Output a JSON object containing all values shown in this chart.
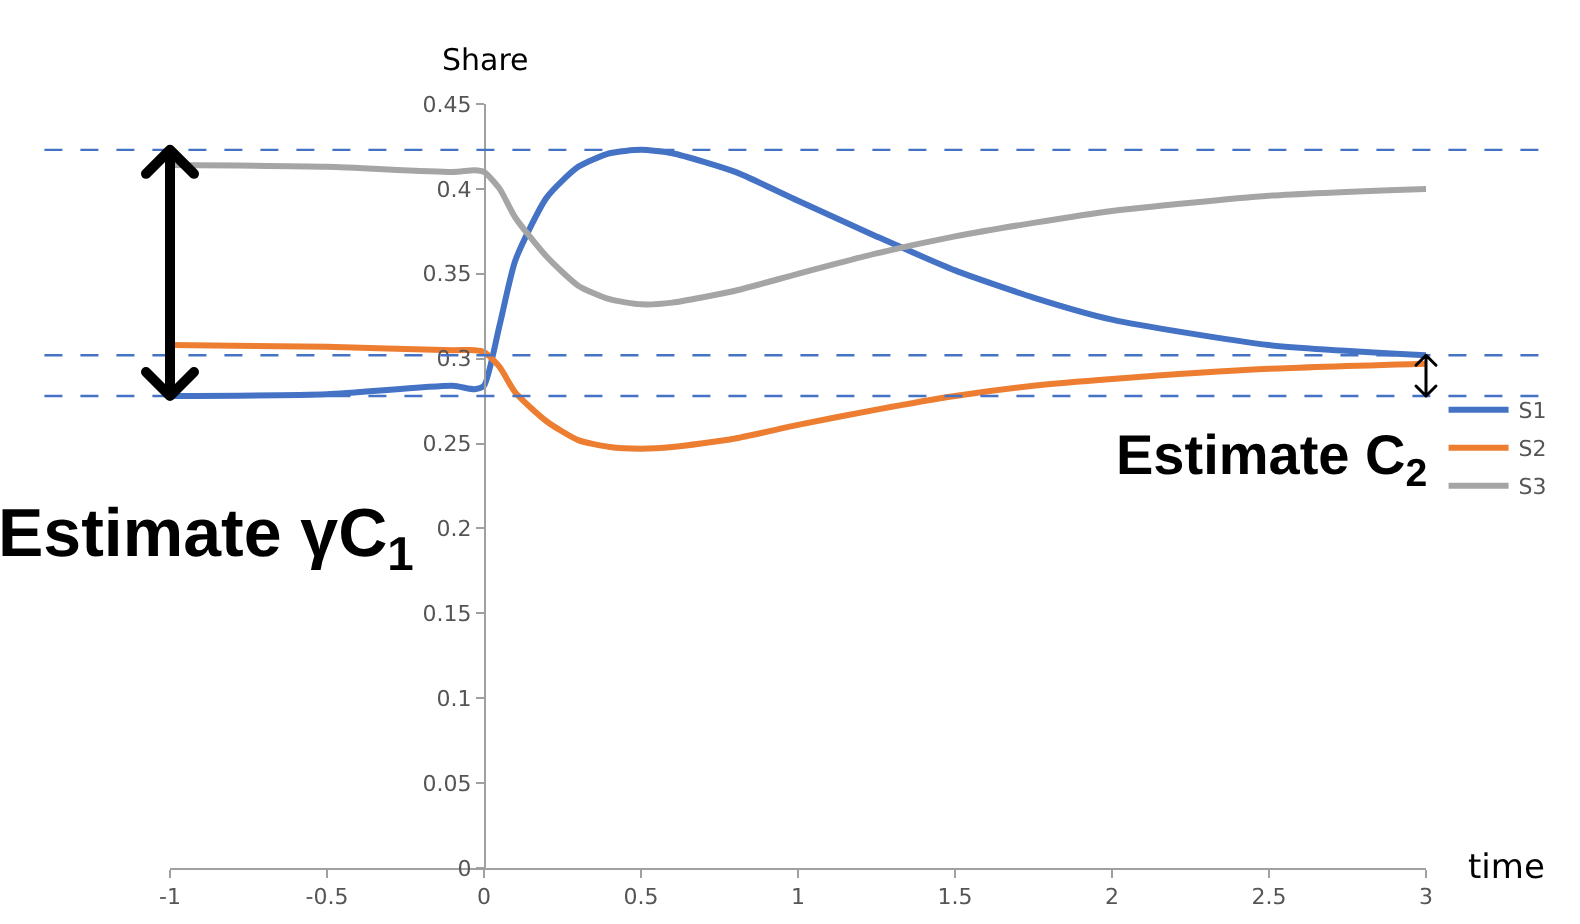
{
  "chart_data": {
    "type": "line",
    "xlabel": "time",
    "ylabel": "Share",
    "x": [
      -1,
      -0.5,
      -0.1,
      -0.03,
      0,
      0.05,
      0.1,
      0.2,
      0.3,
      0.4,
      0.5,
      0.6,
      0.8,
      1.0,
      1.25,
      1.5,
      1.75,
      2.0,
      2.5,
      3.0
    ],
    "series": [
      {
        "name": "S1",
        "color": "#4472c4",
        "values": [
          0.278,
          0.279,
          0.284,
          0.282,
          0.284,
          0.32,
          0.358,
          0.395,
          0.413,
          0.421,
          0.423,
          0.421,
          0.41,
          0.393,
          0.372,
          0.352,
          0.336,
          0.323,
          0.308,
          0.302
        ]
      },
      {
        "name": "S2",
        "color": "#ed7d31",
        "values": [
          0.308,
          0.307,
          0.305,
          0.305,
          0.304,
          0.295,
          0.28,
          0.263,
          0.252,
          0.248,
          0.247,
          0.248,
          0.253,
          0.261,
          0.27,
          0.278,
          0.284,
          0.288,
          0.294,
          0.297
        ]
      },
      {
        "name": "S3",
        "color": "#a5a5a5",
        "values": [
          0.414,
          0.413,
          0.41,
          0.411,
          0.41,
          0.4,
          0.383,
          0.36,
          0.343,
          0.335,
          0.332,
          0.333,
          0.34,
          0.35,
          0.362,
          0.372,
          0.38,
          0.387,
          0.396,
          0.4
        ]
      }
    ],
    "xlim": [
      -1,
      3
    ],
    "xticks": [
      -1,
      -0.5,
      0,
      0.5,
      1,
      1.5,
      2,
      2.5,
      3
    ],
    "ylim": [
      0,
      0.45
    ],
    "yticks": [
      0,
      0.05,
      0.1,
      0.15,
      0.2,
      0.25,
      0.3,
      0.35,
      0.4,
      0.45
    ],
    "ref_lines": [
      {
        "axis": "y",
        "value": 0.423,
        "color": "#4472c4",
        "line_style": "dashed"
      },
      {
        "axis": "y",
        "value": 0.278,
        "color": "#4472c4",
        "line_style": "dashed"
      },
      {
        "axis": "y",
        "value": 0.302,
        "color": "#4472c4",
        "line_style": "dashed"
      }
    ],
    "annotations": [
      "Estimate γC$_{1}$",
      "Estimate C$_{2}$"
    ],
    "grid": false,
    "legend": "right",
    "marker": "none",
    "line_style": "solid"
  }
}
